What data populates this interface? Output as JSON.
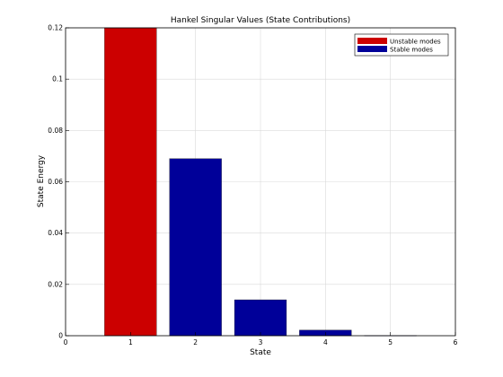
{
  "chart_data": {
    "type": "bar",
    "title": "Hankel Singular Values (State Contributions)",
    "xlabel": "State",
    "ylabel": "State Energy",
    "xlim": [
      0,
      6
    ],
    "ylim": [
      0,
      0.12
    ],
    "xticks": [
      "0",
      "1",
      "2",
      "3",
      "4",
      "5",
      "6"
    ],
    "yticks": [
      "0",
      "0.02",
      "0.04",
      "0.06",
      "0.08",
      "0.1",
      "0.12"
    ],
    "grid": true,
    "legend_position": "top-right",
    "categories": [
      1,
      2,
      3,
      4,
      5
    ],
    "series": [
      {
        "name": "Unstable modes",
        "color": "#cc0000",
        "x": [
          1
        ],
        "values": [
          0.12
        ]
      },
      {
        "name": "Stable modes",
        "color": "#000099",
        "x": [
          2,
          3,
          4,
          5
        ],
        "values": [
          0.069,
          0.014,
          0.0022,
          0.0001
        ]
      }
    ]
  }
}
